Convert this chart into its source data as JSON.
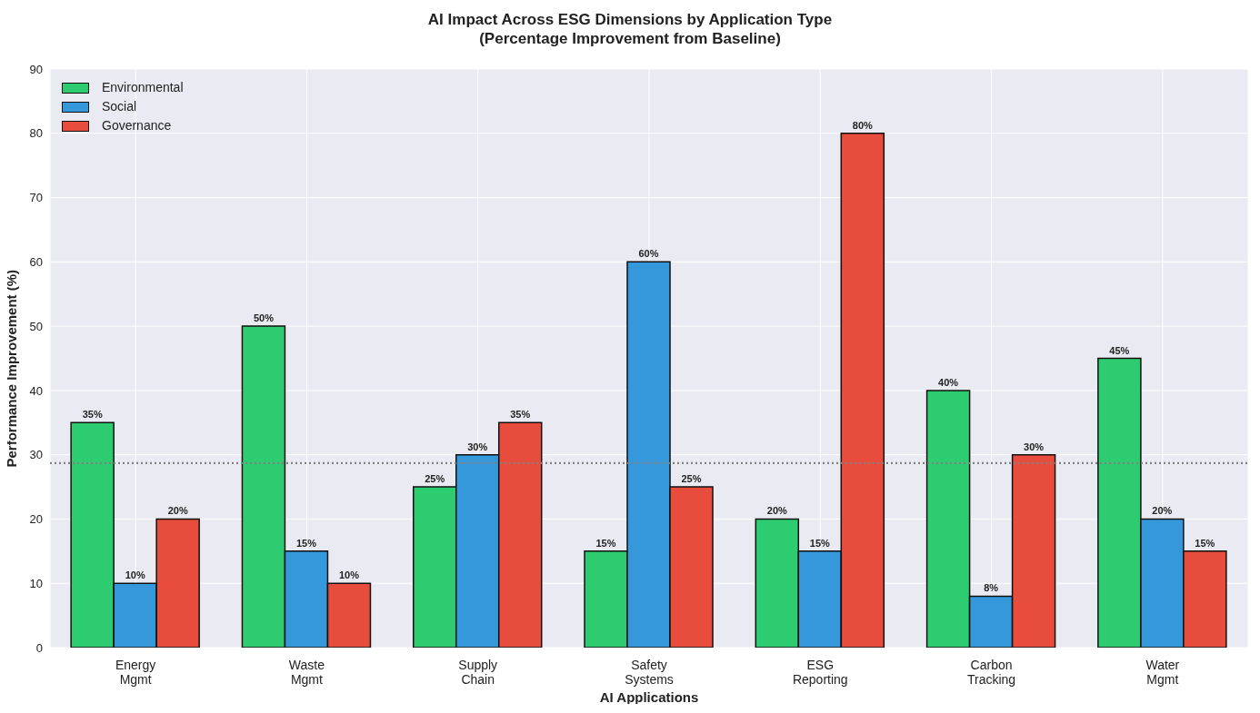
{
  "chart_data": {
    "type": "bar",
    "title": "AI Impact Across ESG Dimensions by Application Type",
    "subtitle": "(Percentage Improvement from Baseline)",
    "xlabel": "AI Applications",
    "ylabel": "Performance Improvement (%)",
    "categories": [
      "Energy\nMgmt",
      "Waste\nMgmt",
      "Supply\nChain",
      "Safety\nSystems",
      "ESG\nReporting",
      "Carbon\nTracking",
      "Water\nMgmt"
    ],
    "series": [
      {
        "name": "Environmental",
        "color": "#2ecc71",
        "values": [
          35,
          50,
          25,
          15,
          20,
          40,
          45
        ],
        "value_labels": [
          "35%",
          "50%",
          "25%",
          "15%",
          "20%",
          "40%",
          "45%"
        ]
      },
      {
        "name": "Social",
        "color": "#3498db",
        "values": [
          10,
          15,
          30,
          60,
          15,
          8,
          20
        ],
        "value_labels": [
          "10%",
          "15%",
          "30%",
          "60%",
          "15%",
          "8%",
          "20%"
        ]
      },
      {
        "name": "Governance",
        "color": "#e74c3c",
        "values": [
          20,
          10,
          35,
          25,
          80,
          30,
          15
        ],
        "value_labels": [
          "20%",
          "10%",
          "35%",
          "25%",
          "80%",
          "30%",
          "15%"
        ]
      }
    ],
    "ylim": [
      0,
      90
    ],
    "yticks": [
      0,
      10,
      20,
      30,
      40,
      50,
      60,
      70,
      80,
      90
    ],
    "ref_lines": [
      {
        "axis": "y",
        "value": 28.7,
        "color": "#808080",
        "line_style": "dotted"
      }
    ],
    "grid": true,
    "legend": "top left"
  }
}
